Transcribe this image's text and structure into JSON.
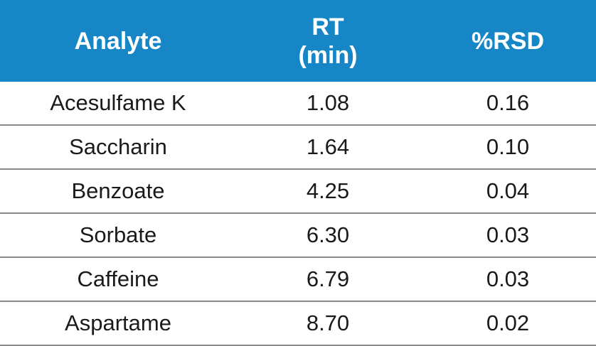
{
  "table": {
    "headers": {
      "analyte": "Analyte",
      "rt_line1": "RT",
      "rt_line2": "(min)",
      "rsd": "%RSD"
    },
    "rows": [
      {
        "analyte": "Acesulfame K",
        "rt": "1.08",
        "rsd": "0.16"
      },
      {
        "analyte": "Saccharin",
        "rt": "1.64",
        "rsd": "0.10"
      },
      {
        "analyte": "Benzoate",
        "rt": "4.25",
        "rsd": "0.04"
      },
      {
        "analyte": "Sorbate",
        "rt": "6.30",
        "rsd": "0.03"
      },
      {
        "analyte": "Caffeine",
        "rt": "6.79",
        "rsd": "0.03"
      },
      {
        "analyte": "Aspartame",
        "rt": "8.70",
        "rsd": "0.02"
      }
    ],
    "colors": {
      "header_bg": "#1686c6",
      "header_text": "#ffffff",
      "rule": "#8a8a8a"
    }
  }
}
